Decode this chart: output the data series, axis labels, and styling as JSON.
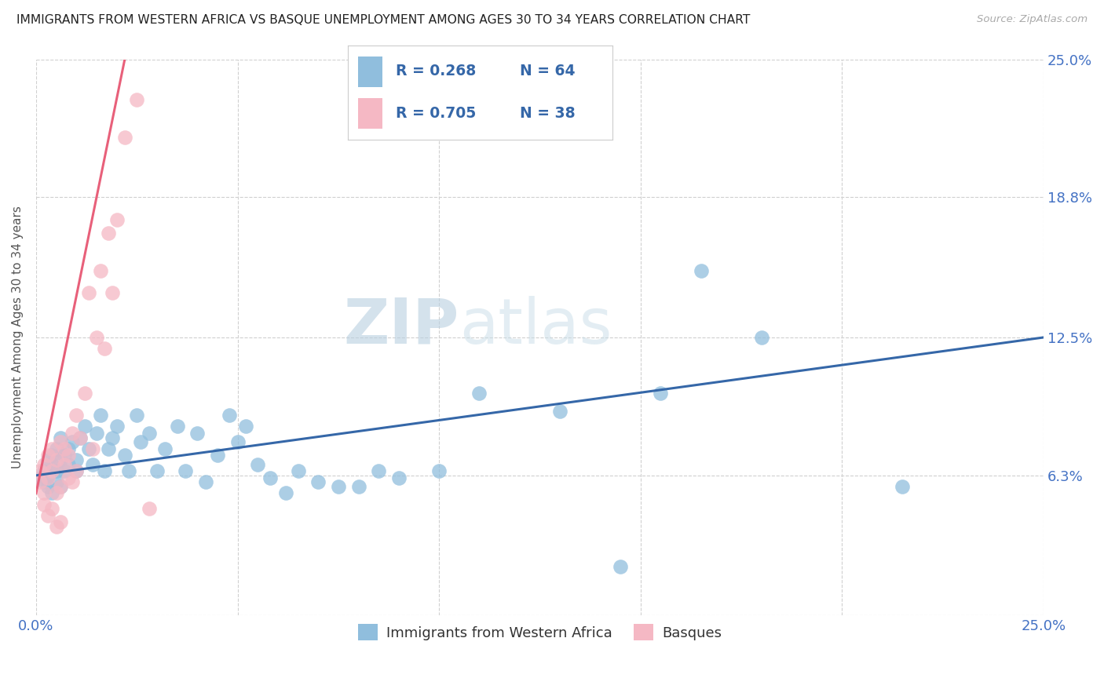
{
  "title": "IMMIGRANTS FROM WESTERN AFRICA VS BASQUE UNEMPLOYMENT AMONG AGES 30 TO 34 YEARS CORRELATION CHART",
  "source": "Source: ZipAtlas.com",
  "ylabel": "Unemployment Among Ages 30 to 34 years",
  "xlim": [
    0.0,
    0.25
  ],
  "ylim": [
    0.0,
    0.25
  ],
  "xtick_positions": [
    0.0,
    0.05,
    0.1,
    0.15,
    0.2,
    0.25
  ],
  "xtick_labels": [
    "0.0%",
    "",
    "",
    "",
    "",
    "25.0%"
  ],
  "ytick_positions": [
    0.0,
    0.063,
    0.125,
    0.188,
    0.25
  ],
  "ytick_labels": [
    "",
    "6.3%",
    "12.5%",
    "18.8%",
    "25.0%"
  ],
  "legend_labels": [
    "Immigrants from Western Africa",
    "Basques"
  ],
  "blue_R": "R = 0.268",
  "blue_N": "N = 64",
  "pink_R": "R = 0.705",
  "pink_N": "N = 38",
  "blue_color": "#90bedd",
  "pink_color": "#f5b8c4",
  "blue_line_color": "#3567a8",
  "pink_line_color": "#e8607a",
  "watermark_color": "#cddff0",
  "blue_line": [
    0.0,
    0.25,
    0.063,
    0.125
  ],
  "pink_line_x": [
    0.0,
    0.022
  ],
  "pink_line_y": [
    0.055,
    0.25
  ],
  "blue_scatter_x": [
    0.001,
    0.002,
    0.002,
    0.003,
    0.003,
    0.003,
    0.004,
    0.004,
    0.004,
    0.005,
    0.005,
    0.005,
    0.006,
    0.006,
    0.006,
    0.007,
    0.007,
    0.008,
    0.008,
    0.009,
    0.01,
    0.01,
    0.011,
    0.012,
    0.013,
    0.014,
    0.015,
    0.016,
    0.017,
    0.018,
    0.019,
    0.02,
    0.022,
    0.023,
    0.025,
    0.026,
    0.028,
    0.03,
    0.032,
    0.035,
    0.037,
    0.04,
    0.042,
    0.045,
    0.048,
    0.05,
    0.052,
    0.055,
    0.058,
    0.062,
    0.065,
    0.07,
    0.075,
    0.08,
    0.085,
    0.09,
    0.1,
    0.11,
    0.13,
    0.155,
    0.165,
    0.18,
    0.215,
    0.145
  ],
  "blue_scatter_y": [
    0.062,
    0.06,
    0.065,
    0.058,
    0.07,
    0.063,
    0.068,
    0.055,
    0.072,
    0.065,
    0.06,
    0.075,
    0.07,
    0.058,
    0.08,
    0.072,
    0.065,
    0.075,
    0.068,
    0.078,
    0.07,
    0.065,
    0.08,
    0.085,
    0.075,
    0.068,
    0.082,
    0.09,
    0.065,
    0.075,
    0.08,
    0.085,
    0.072,
    0.065,
    0.09,
    0.078,
    0.082,
    0.065,
    0.075,
    0.085,
    0.065,
    0.082,
    0.06,
    0.072,
    0.09,
    0.078,
    0.085,
    0.068,
    0.062,
    0.055,
    0.065,
    0.06,
    0.058,
    0.058,
    0.065,
    0.062,
    0.065,
    0.1,
    0.092,
    0.1,
    0.155,
    0.125,
    0.058,
    0.022
  ],
  "pink_scatter_x": [
    0.001,
    0.001,
    0.002,
    0.002,
    0.002,
    0.003,
    0.003,
    0.003,
    0.004,
    0.004,
    0.004,
    0.005,
    0.005,
    0.005,
    0.006,
    0.006,
    0.006,
    0.007,
    0.007,
    0.008,
    0.008,
    0.009,
    0.009,
    0.01,
    0.01,
    0.011,
    0.012,
    0.013,
    0.014,
    0.015,
    0.016,
    0.017,
    0.018,
    0.019,
    0.02,
    0.022,
    0.025,
    0.028
  ],
  "pink_scatter_y": [
    0.06,
    0.065,
    0.055,
    0.068,
    0.05,
    0.062,
    0.072,
    0.045,
    0.075,
    0.048,
    0.065,
    0.07,
    0.055,
    0.04,
    0.078,
    0.058,
    0.042,
    0.075,
    0.068,
    0.072,
    0.062,
    0.082,
    0.06,
    0.09,
    0.065,
    0.08,
    0.1,
    0.145,
    0.075,
    0.125,
    0.155,
    0.12,
    0.172,
    0.145,
    0.178,
    0.215,
    0.232,
    0.048
  ]
}
